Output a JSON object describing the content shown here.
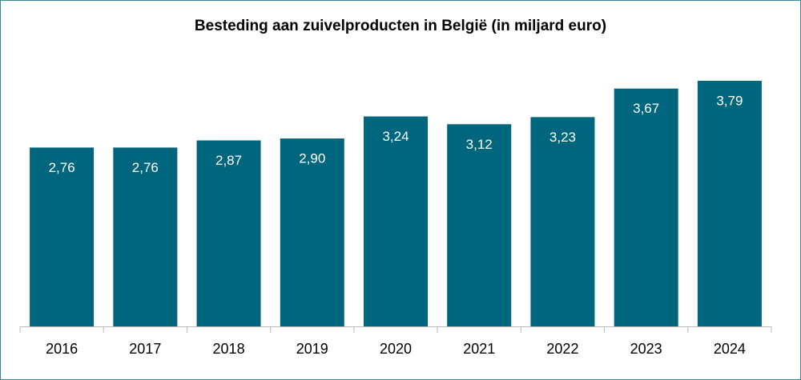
{
  "chart_data": {
    "type": "bar",
    "title": "Besteding aan zuivelproducten in België (in miljard euro)",
    "categories": [
      "2016",
      "2017",
      "2018",
      "2019",
      "2020",
      "2021",
      "2022",
      "2023",
      "2024"
    ],
    "values": [
      2.76,
      2.76,
      2.87,
      2.9,
      3.24,
      3.12,
      3.23,
      3.67,
      3.79
    ],
    "value_labels": [
      "2,76",
      "2,76",
      "2,87",
      "2,90",
      "3,24",
      "3,12",
      "3,23",
      "3,67",
      "3,79"
    ],
    "color": "#00667d"
  }
}
